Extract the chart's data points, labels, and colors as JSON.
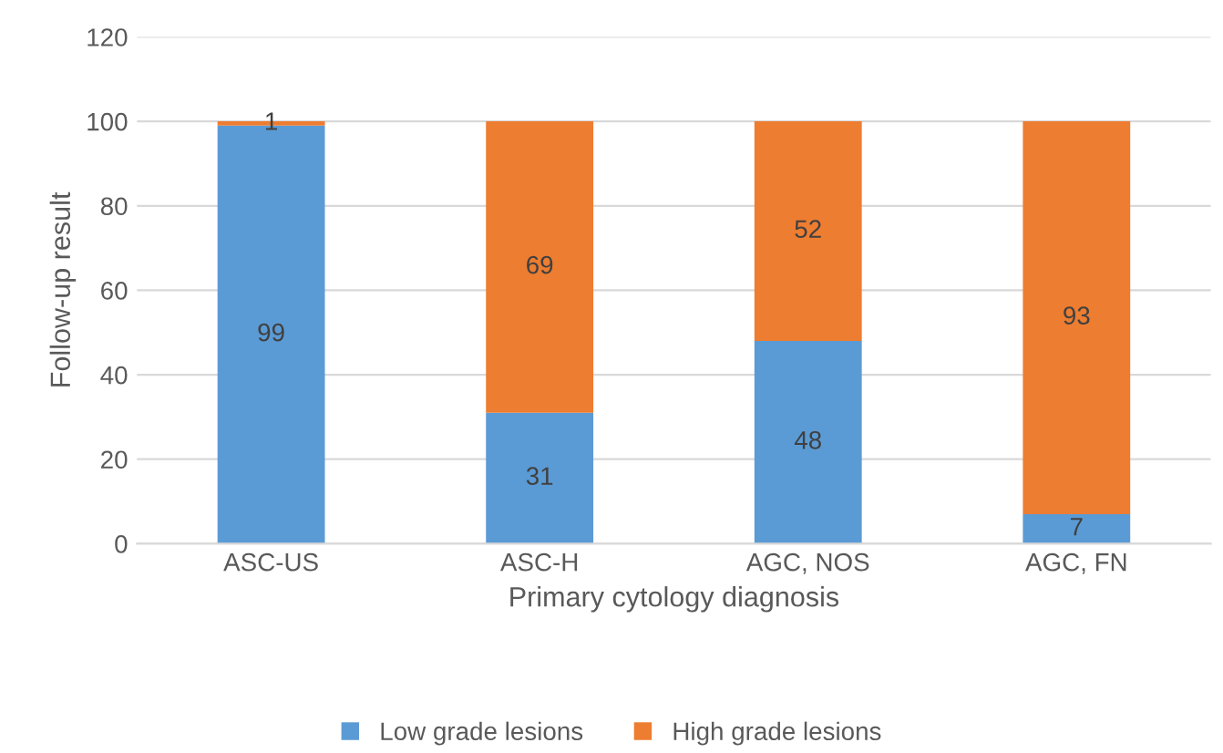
{
  "chart_data": {
    "type": "bar",
    "stacked": true,
    "xlabel": "Primary cytology diagnosis",
    "ylabel": "Follow-up result",
    "categories": [
      "ASC-US",
      "ASC-H",
      "AGC, NOS",
      "AGC, FN"
    ],
    "series": [
      {
        "name": "Low grade lesions",
        "color": "#5b9bd5",
        "values": [
          99,
          31,
          48,
          7
        ]
      },
      {
        "name": "High grade lesions",
        "color": "#ed7d31",
        "values": [
          1,
          69,
          52,
          93
        ]
      }
    ],
    "ylim": [
      0,
      120
    ],
    "yticks": [
      0,
      20,
      40,
      60,
      80,
      100,
      120
    ],
    "grid": "y",
    "legend": "bottom",
    "data_labels": true
  }
}
